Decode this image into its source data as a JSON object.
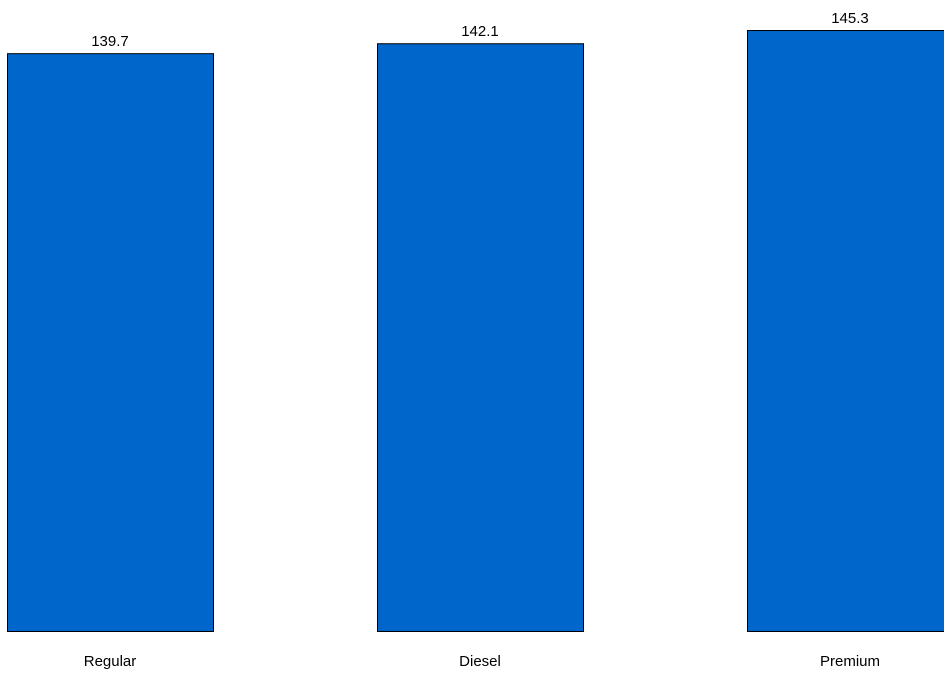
{
  "chart_data": {
    "type": "bar",
    "categories": [
      "Regular",
      "Diesel",
      "Premium"
    ],
    "values": [
      139.7,
      142.1,
      145.3
    ],
    "title": "",
    "xlabel": "",
    "ylabel": "",
    "ylim": [
      0,
      145.3
    ],
    "grid": false,
    "legend": "none",
    "data_labels": [
      "139.7",
      "142.1",
      "145.3"
    ],
    "bar_color": "#0066CC",
    "bar_edge_color": "#000000"
  }
}
